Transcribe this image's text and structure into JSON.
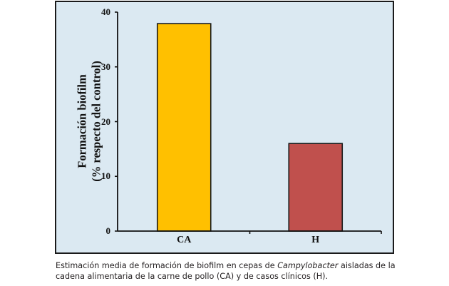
{
  "chart_data": {
    "type": "bar",
    "title": "",
    "categories": [
      "CA",
      "H"
    ],
    "values": [
      37.9,
      16.0
    ],
    "colors": [
      "#FFC000",
      "#C0504D"
    ],
    "xlabel": "",
    "ylabel": "Formación biofilm (% respecto del control)",
    "ylabel_lines": [
      "Formación biofilm",
      "(% respecto del control)"
    ],
    "ylim": [
      0,
      40
    ],
    "yticks": [
      0,
      10,
      20,
      30,
      40
    ],
    "grid": false,
    "legend": null,
    "background": "#DBE9F2"
  },
  "caption": {
    "part1": "Estimación media de formación de biofilm en cepas de ",
    "italic": "Campylobacter",
    "part2": " aisladas de la cadena alimentaria de la carne de pollo (CA) y de casos clínicos (H)."
  }
}
